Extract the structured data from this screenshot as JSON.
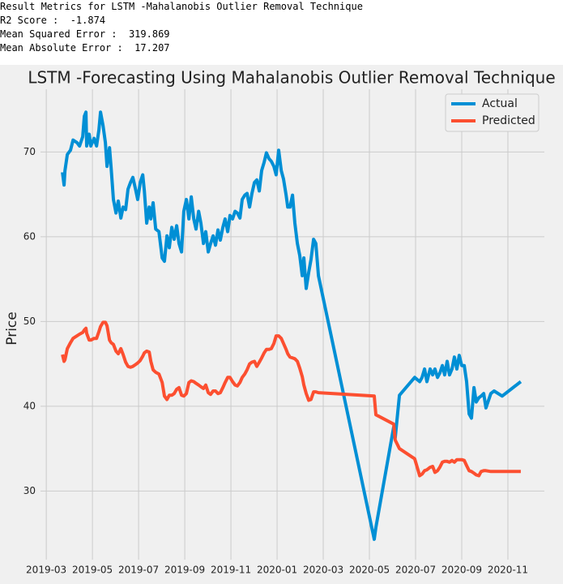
{
  "output": {
    "lines": [
      "Result Metrics for LSTM -Mahalanobis Outlier Removal Technique",
      "R2 Score :  -1.874",
      "Mean Squared Error :  319.869",
      "Mean Absolute Error :  17.207"
    ]
  },
  "chart_data": {
    "type": "line",
    "title": "LSTM -Forecasting Using Mahalanobis Outlier Removal Technique",
    "ylabel": "Price",
    "legend": "upper right",
    "grid": true,
    "x": [
      0.7,
      0.77,
      0.81,
      0.91,
      1.05,
      1.16,
      1.33,
      1.44,
      1.58,
      1.65,
      1.72,
      1.75,
      1.86,
      1.93,
      2.07,
      2.18,
      2.28,
      2.35,
      2.46,
      2.56,
      2.63,
      2.74,
      2.81,
      2.91,
      3.02,
      3.12,
      3.23,
      3.33,
      3.44,
      3.54,
      3.65,
      3.75,
      3.86,
      3.96,
      4.07,
      4.18,
      4.25,
      4.35,
      4.46,
      4.53,
      4.63,
      4.74,
      4.88,
      5.02,
      5.12,
      5.23,
      5.33,
      5.44,
      5.54,
      5.65,
      5.75,
      5.86,
      5.96,
      6.07,
      6.18,
      6.28,
      6.39,
      6.49,
      6.6,
      6.7,
      6.81,
      6.91,
      7.02,
      7.12,
      7.23,
      7.33,
      7.44,
      7.54,
      7.65,
      7.75,
      7.86,
      7.96,
      8.07,
      8.18,
      8.28,
      8.39,
      8.49,
      8.6,
      8.7,
      8.81,
      8.91,
      9.02,
      9.12,
      9.23,
      9.33,
      9.44,
      9.54,
      9.65,
      9.75,
      9.86,
      9.96,
      10.07,
      10.18,
      10.28,
      10.39,
      10.46,
      10.56,
      10.67,
      10.77,
      10.88,
      10.98,
      11.09,
      11.16,
      11.26,
      11.37,
      11.47,
      11.58,
      11.68,
      11.79,
      14.21,
      14.28,
      15.05,
      15.12,
      15.3,
      15.96,
      16.18,
      16.28,
      16.39,
      16.49,
      16.63,
      16.74,
      16.84,
      16.95,
      17.05,
      17.16,
      17.26,
      17.37,
      17.47,
      17.58,
      17.68,
      17.79,
      17.89,
      18,
      18.11,
      18.21,
      18.32,
      18.42,
      18.53,
      18.63,
      18.74,
      18.84,
      18.95,
      19.05,
      19.26,
      19.4,
      19.75,
      20.56
    ],
    "series": [
      {
        "name": "Actual",
        "color": "#008fd5",
        "values": [
          67.6,
          66.1,
          67.8,
          69.7,
          70.2,
          71.4,
          71.1,
          70.7,
          71.8,
          74.2,
          74.7,
          70.7,
          72.1,
          70.7,
          71.6,
          70.7,
          72.6,
          74.7,
          73.1,
          71.1,
          68.3,
          70.5,
          68.1,
          64.4,
          62.8,
          64.2,
          62.2,
          63.5,
          63.2,
          65.6,
          66.4,
          67.0,
          65.7,
          64.4,
          66.4,
          67.3,
          65.4,
          61.6,
          63.5,
          62.1,
          64.0,
          60.9,
          60.6,
          57.5,
          57.1,
          60.1,
          58.7,
          61.1,
          59.7,
          61.3,
          59.2,
          58.2,
          63.0,
          64.4,
          62.1,
          64.7,
          62.1,
          60.9,
          63.0,
          61.6,
          59.2,
          60.6,
          58.2,
          59.2,
          60.1,
          59.0,
          60.8,
          59.6,
          61.1,
          62.1,
          60.6,
          62.5,
          62.1,
          63.0,
          62.8,
          62.2,
          64.4,
          64.9,
          65.1,
          63.5,
          65.1,
          66.4,
          66.7,
          65.4,
          67.8,
          68.8,
          69.9,
          69.2,
          68.9,
          68.3,
          67.3,
          70.2,
          67.8,
          66.8,
          64.9,
          63.5,
          63.5,
          64.9,
          61.6,
          59.2,
          57.8,
          55.4,
          57.5,
          53.9,
          55.8,
          57.3,
          59.7,
          59.2,
          55.4,
          24.3,
          25.7,
          37.5,
          36.3,
          41.3,
          43.4,
          42.9,
          43.4,
          44.4,
          42.9,
          44.4,
          43.7,
          44.4,
          43.4,
          43.9,
          44.8,
          43.7,
          45.3,
          43.7,
          44.4,
          45.8,
          44.4,
          46.0,
          44.8,
          44.8,
          42.9,
          39.1,
          38.6,
          42.2,
          40.5,
          41.0,
          41.2,
          41.5,
          39.8,
          41.5,
          41.8,
          41.2,
          42.9
        ]
      },
      {
        "name": "Predicted",
        "color": "#fc4f30",
        "values": [
          46.1,
          45.3,
          45.5,
          46.8,
          47.5,
          48.0,
          48.3,
          48.5,
          48.7,
          49.0,
          49.2,
          48.6,
          47.8,
          47.8,
          48.0,
          48.0,
          48.8,
          49.4,
          49.9,
          49.9,
          49.5,
          47.8,
          47.5,
          47.3,
          46.5,
          46.2,
          46.8,
          46.1,
          45.2,
          44.7,
          44.6,
          44.7,
          44.9,
          45.1,
          45.4,
          45.9,
          46.3,
          46.5,
          46.4,
          45.3,
          44.3,
          44.0,
          43.8,
          42.8,
          41.2,
          40.8,
          41.3,
          41.3,
          41.5,
          42.0,
          42.2,
          41.3,
          41.2,
          41.5,
          42.8,
          43.0,
          42.9,
          42.7,
          42.5,
          42.3,
          42.1,
          42.5,
          41.6,
          41.4,
          41.8,
          41.8,
          41.5,
          41.6,
          42.2,
          42.8,
          43.4,
          43.4,
          42.9,
          42.5,
          42.4,
          42.8,
          43.4,
          43.8,
          44.3,
          45.0,
          45.2,
          45.3,
          44.7,
          45.2,
          45.7,
          46.3,
          46.7,
          46.7,
          46.8,
          47.4,
          48.3,
          48.3,
          48.0,
          47.4,
          46.7,
          46.2,
          45.8,
          45.7,
          45.6,
          45.3,
          44.5,
          43.5,
          42.5,
          41.5,
          40.7,
          40.8,
          41.7,
          41.7,
          41.6,
          41.2,
          39.0,
          37.9,
          36.0,
          35.0,
          33.8,
          31.8,
          32.0,
          32.4,
          32.5,
          32.8,
          32.9,
          32.2,
          32.4,
          32.8,
          33.4,
          33.5,
          33.5,
          33.4,
          33.6,
          33.4,
          33.7,
          33.7,
          33.7,
          33.6,
          33.0,
          32.4,
          32.3,
          32.1,
          31.9,
          31.8,
          32.3,
          32.4,
          32.4,
          32.3,
          32.3,
          32.3,
          32.3
        ]
      }
    ],
    "xlim": [
      -0.25,
      21.58
    ],
    "xticks": [
      {
        "value": 0,
        "label": "2019-03"
      },
      {
        "value": 2,
        "label": "2019-05"
      },
      {
        "value": 4,
        "label": "2019-07"
      },
      {
        "value": 6,
        "label": "2019-09"
      },
      {
        "value": 8,
        "label": "2019-11"
      },
      {
        "value": 10,
        "label": "2020-01"
      },
      {
        "value": 12,
        "label": "2020-03"
      },
      {
        "value": 14,
        "label": "2020-05"
      },
      {
        "value": 16,
        "label": "2020-07"
      },
      {
        "value": 18,
        "label": "2020-09"
      },
      {
        "value": 20,
        "label": "2020-11"
      }
    ],
    "ylim": [
      21.9,
      77.4
    ],
    "yticks": [
      30,
      40,
      50,
      60,
      70
    ]
  }
}
